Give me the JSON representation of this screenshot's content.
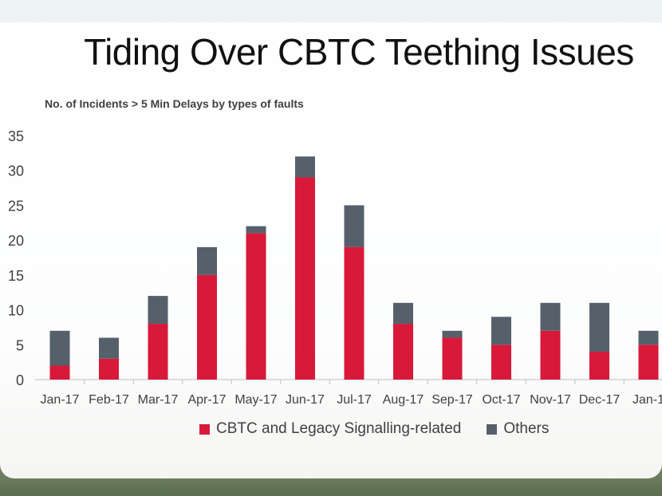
{
  "page": {
    "title": "Tiding Over CBTC Teething Issues"
  },
  "chart_data": {
    "type": "bar",
    "stacked": true,
    "title": "No. of Incidents > 5 Min Delays by types of faults",
    "xlabel": "",
    "ylabel": "",
    "ylim": [
      0,
      35
    ],
    "yticks": [
      0,
      5,
      10,
      15,
      20,
      25,
      30,
      35
    ],
    "yticklabels": [
      "0",
      "5",
      "10",
      "15",
      "20",
      "25",
      "30",
      "35"
    ],
    "categories": [
      "Jan-17",
      "Feb-17",
      "Mar-17",
      "Apr-17",
      "May-17",
      "Jun-17",
      "Jul-17",
      "Aug-17",
      "Sep-17",
      "Oct-17",
      "Nov-17",
      "Dec-17",
      "Jan-1"
    ],
    "series": [
      {
        "name": "CBTC and Legacy Signalling-related",
        "color": "#d8193a",
        "values": [
          2,
          3,
          8,
          15,
          21,
          29,
          19,
          8,
          6,
          5,
          7,
          4,
          5
        ]
      },
      {
        "name": "Others",
        "color": "#56606a",
        "values": [
          5,
          3,
          4,
          4,
          1,
          3,
          6,
          3,
          1,
          4,
          4,
          7,
          2
        ]
      }
    ],
    "legend_position": "bottom",
    "grid": false
  }
}
